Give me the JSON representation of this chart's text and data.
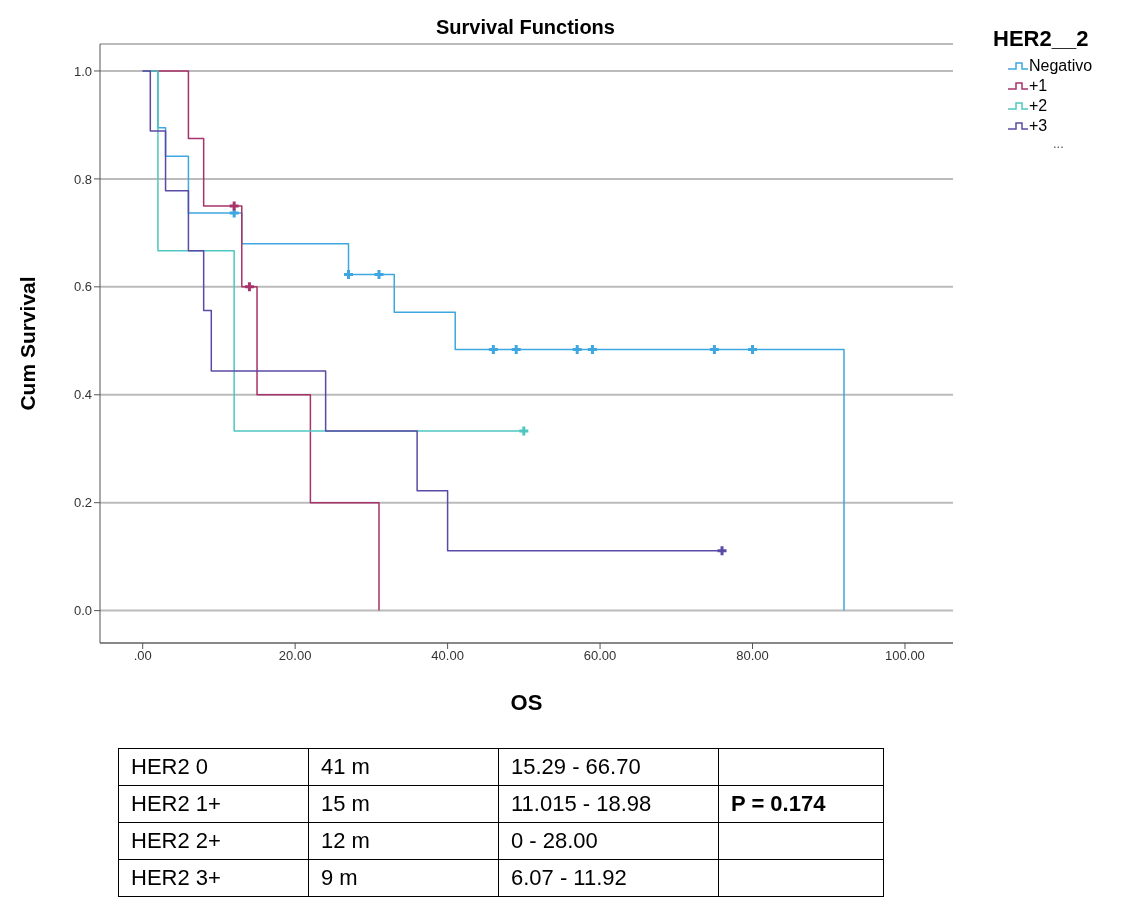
{
  "chart_data": {
    "type": "step",
    "title": "Survival Functions",
    "xlabel": "OS",
    "ylabel": "Cum Survival",
    "legend_title": "HER2__2",
    "legend": "top right",
    "grid": "y",
    "line_style": "solid",
    "xlim": [
      -5.6,
      106.3
    ],
    "xticks": [
      {
        "value": 0,
        "label": ".00"
      },
      {
        "value": 20,
        "label": "20.00"
      },
      {
        "value": 40,
        "label": "40.00"
      },
      {
        "value": 60,
        "label": "60.00"
      },
      {
        "value": 80,
        "label": "80.00"
      },
      {
        "value": 100,
        "label": "100.00"
      }
    ],
    "ylim": [
      -0.06,
      1.05
    ],
    "yticks": [
      {
        "value": 0,
        "label": "0.0"
      },
      {
        "value": 0.2,
        "label": "0.2"
      },
      {
        "value": 0.4,
        "label": "0.4"
      },
      {
        "value": 0.6,
        "label": "0.6"
      },
      {
        "value": 0.8,
        "label": "0.8"
      },
      {
        "value": 1,
        "label": "1.0"
      }
    ],
    "series": [
      {
        "name": "Negativo",
        "color": "#3ea6e0",
        "x": [
          0,
          2,
          3,
          6,
          13,
          27,
          33,
          41,
          92
        ],
        "values": [
          1,
          0.895,
          0.842,
          0.737,
          0.68,
          0.623,
          0.553,
          0.484,
          0
        ]
      },
      {
        "name": "+1",
        "color": "#a8336a",
        "x": [
          0,
          6,
          8,
          13,
          15,
          22,
          31
        ],
        "values": [
          1,
          0.875,
          0.75,
          0.6,
          0.4,
          0.2,
          0
        ]
      },
      {
        "name": "+2",
        "color": "#4fc6c0",
        "x": [
          0,
          2,
          12,
          50
        ],
        "values": [
          1,
          0.667,
          0.333,
          0.333
        ]
      },
      {
        "name": "+3",
        "color": "#5b4aa5",
        "x": [
          0,
          1,
          3,
          6,
          8,
          9,
          24,
          36,
          40,
          76
        ],
        "values": [
          1,
          0.889,
          0.778,
          0.667,
          0.556,
          0.444,
          0.333,
          0.222,
          0.111,
          0.111
        ]
      },
      {
        "type": "scatter",
        "marker": "cross",
        "color": "#3ea6e0",
        "x": [
          12,
          27,
          31,
          46,
          49,
          57,
          59,
          75,
          80
        ],
        "values": [
          0.737,
          0.623,
          0.623,
          0.484,
          0.484,
          0.484,
          0.484,
          0.484,
          0.484
        ]
      },
      {
        "type": "scatter",
        "marker": "cross",
        "color": "#a8336a",
        "x": [
          12,
          14
        ],
        "values": [
          0.75,
          0.6
        ]
      },
      {
        "type": "scatter",
        "marker": "cross",
        "color": "#4fc6c0",
        "x": [
          50
        ],
        "values": [
          0.333
        ]
      },
      {
        "type": "scatter",
        "marker": "cross",
        "color": "#5b4aa5",
        "x": [
          76
        ],
        "values": [
          0.111
        ]
      }
    ],
    "annotations": [
      "...",
      "HER2 0",
      "41 m",
      "15.29 - 66.70",
      "HER2 1+",
      "15 m",
      "11.015 - 18.98",
      "HER2 2+",
      "12 m",
      "0 - 28.00",
      "HER2 3+",
      "9 m",
      "6.07 - 11.92",
      "P = 0.174"
    ]
  }
}
